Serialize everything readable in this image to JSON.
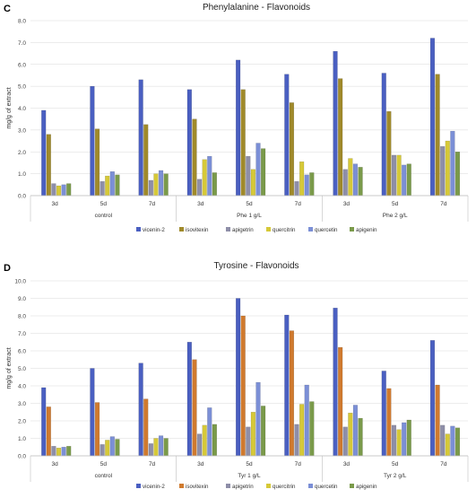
{
  "panels": [
    {
      "letter": "C"
    },
    {
      "letter": "D"
    }
  ],
  "chart_data": [
    {
      "type": "bar",
      "title": "Phenylalanine - Flavonoids",
      "ylabel": "mg/g of extract",
      "ylim": [
        0,
        8
      ],
      "yticks": [
        "0.0",
        "1.0",
        "2.0",
        "3.0",
        "4.0",
        "5.0",
        "6.0",
        "7.0",
        "8.0"
      ],
      "ytick_values": [
        0,
        1,
        2,
        3,
        4,
        5,
        6,
        7,
        8
      ],
      "grid": true,
      "legend_position": "bottom",
      "categories": [
        "3d",
        "5d",
        "7d",
        "3d",
        "5d",
        "7d",
        "3d",
        "5d",
        "7d"
      ],
      "groups": [
        {
          "label": "control",
          "span": 3
        },
        {
          "label": "Phe 1 g/L",
          "span": 3
        },
        {
          "label": "Phe 2 g/L",
          "span": 3
        }
      ],
      "series": [
        {
          "name": "vicenin-2",
          "color": "#4a5fc1",
          "values": [
            3.9,
            5.0,
            5.3,
            4.85,
            6.2,
            5.55,
            6.6,
            5.6,
            7.2
          ]
        },
        {
          "name": "isovitexin",
          "color": "#a08a2a",
          "values": [
            2.8,
            3.05,
            3.25,
            3.5,
            4.85,
            4.25,
            5.35,
            3.85,
            5.55
          ]
        },
        {
          "name": "apigetrin",
          "color": "#8e8ea8",
          "values": [
            0.55,
            0.65,
            0.7,
            0.75,
            1.8,
            0.65,
            1.2,
            1.85,
            2.25
          ]
        },
        {
          "name": "quercitrin",
          "color": "#d6c938",
          "values": [
            0.45,
            0.9,
            1.0,
            1.65,
            1.2,
            1.55,
            1.7,
            1.85,
            2.5
          ]
        },
        {
          "name": "quercetin",
          "color": "#7b8fd6",
          "values": [
            0.5,
            1.1,
            1.15,
            1.8,
            2.4,
            0.95,
            1.45,
            1.4,
            2.95
          ]
        },
        {
          "name": "apigenin",
          "color": "#7a9a4a",
          "values": [
            0.55,
            0.95,
            1.0,
            1.05,
            2.15,
            1.05,
            1.3,
            1.45,
            2.0
          ]
        }
      ]
    },
    {
      "type": "bar",
      "title": "Tyrosine - Flavonoids",
      "ylabel": "mg/g of extract",
      "ylim": [
        0,
        10
      ],
      "yticks": [
        "0.0",
        "1.0",
        "2.0",
        "3.0",
        "4.0",
        "5.0",
        "6.0",
        "7.0",
        "8.0",
        "9.0",
        "10.0"
      ],
      "ytick_values": [
        0,
        1,
        2,
        3,
        4,
        5,
        6,
        7,
        8,
        9,
        10
      ],
      "grid": true,
      "legend_position": "bottom",
      "categories": [
        "3d",
        "5d",
        "7d",
        "3d",
        "5d",
        "7d",
        "3d",
        "5d",
        "7d"
      ],
      "groups": [
        {
          "label": "control",
          "span": 3
        },
        {
          "label": "Tyr 1 g/L",
          "span": 3
        },
        {
          "label": "Tyr 2 g/L",
          "span": 3
        }
      ],
      "series": [
        {
          "name": "vicenin-2",
          "color": "#4a5fc1",
          "values": [
            3.9,
            5.0,
            5.3,
            6.5,
            9.0,
            8.05,
            8.45,
            4.85,
            6.6
          ]
        },
        {
          "name": "isovitexin",
          "color": "#d07a2e",
          "values": [
            2.8,
            3.05,
            3.25,
            5.5,
            8.0,
            7.15,
            6.2,
            3.85,
            4.05
          ]
        },
        {
          "name": "apigetrin",
          "color": "#8e8ea8",
          "values": [
            0.55,
            0.65,
            0.7,
            1.25,
            1.65,
            1.8,
            1.65,
            1.75,
            1.75
          ]
        },
        {
          "name": "quercitrin",
          "color": "#d6c938",
          "values": [
            0.45,
            0.9,
            1.0,
            1.75,
            2.5,
            2.95,
            2.45,
            1.5,
            1.25
          ]
        },
        {
          "name": "quercetin",
          "color": "#7b8fd6",
          "values": [
            0.5,
            1.1,
            1.15,
            2.75,
            4.2,
            4.05,
            2.9,
            1.9,
            1.7
          ]
        },
        {
          "name": "apigenin",
          "color": "#7a9a4a",
          "values": [
            0.55,
            0.95,
            1.0,
            1.8,
            2.85,
            3.1,
            2.15,
            2.05,
            1.6
          ]
        }
      ]
    }
  ]
}
